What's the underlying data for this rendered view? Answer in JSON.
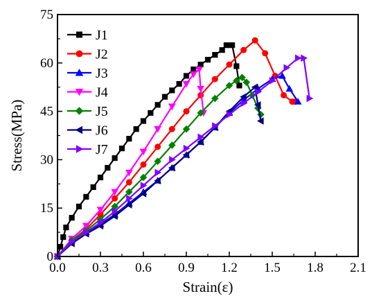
{
  "chart_data": {
    "type": "line",
    "xlabel": "Strain(ε)",
    "ylabel": "Stress(MPa)",
    "xlim": [
      0.0,
      2.1
    ],
    "ylim": [
      0,
      75
    ],
    "x_ticks": [
      "0.0",
      "0.3",
      "0.6",
      "0.9",
      "1.2",
      "1.5",
      "1.8",
      "2.1"
    ],
    "y_ticks": [
      "0",
      "15",
      "30",
      "45",
      "60",
      "75"
    ],
    "grid": false,
    "legend_position": "top-left",
    "series": [
      {
        "name": "J1",
        "color": "#000000",
        "marker": "square",
        "x": [
          0.0,
          0.02,
          0.04,
          0.06,
          0.1,
          0.15,
          0.2,
          0.25,
          0.3,
          0.35,
          0.4,
          0.45,
          0.5,
          0.55,
          0.6,
          0.65,
          0.7,
          0.75,
          0.8,
          0.85,
          0.9,
          0.95,
          1.0,
          1.05,
          1.1,
          1.15,
          1.18,
          1.22,
          1.25,
          1.27
        ],
        "y": [
          0,
          3,
          6,
          9,
          12,
          15.5,
          18.5,
          21.5,
          24.5,
          27.5,
          30.5,
          33.5,
          36.5,
          39.5,
          42,
          44.5,
          47,
          49.5,
          51.5,
          53.5,
          56,
          58,
          59.5,
          61,
          62.5,
          64,
          65.5,
          65.5,
          59,
          53
        ]
      },
      {
        "name": "J2",
        "color": "#ff0000",
        "marker": "circle",
        "x": [
          0.0,
          0.1,
          0.2,
          0.3,
          0.4,
          0.5,
          0.6,
          0.7,
          0.8,
          0.9,
          1.0,
          1.1,
          1.2,
          1.3,
          1.38,
          1.45,
          1.52,
          1.58,
          1.64,
          1.66
        ],
        "y": [
          0,
          5,
          8.5,
          13,
          18,
          23,
          28.5,
          34,
          39.5,
          45,
          50,
          55,
          59.5,
          64,
          67,
          63,
          56,
          50,
          48,
          48
        ]
      },
      {
        "name": "J3",
        "color": "#0000ff",
        "marker": "triangle-up",
        "x": [
          0.0,
          0.1,
          0.2,
          0.3,
          0.4,
          0.5,
          0.6,
          0.7,
          0.8,
          0.9,
          1.0,
          1.1,
          1.2,
          1.3,
          1.4,
          1.5,
          1.57,
          1.62,
          1.68
        ],
        "y": [
          0,
          5,
          7.5,
          10,
          13,
          16.5,
          20,
          23.5,
          27.5,
          31.5,
          35.5,
          40,
          44.5,
          48.5,
          52,
          55,
          56,
          52,
          48
        ]
      },
      {
        "name": "J4",
        "color": "#ff00ff",
        "marker": "triangle-down",
        "x": [
          0.0,
          0.1,
          0.2,
          0.3,
          0.4,
          0.5,
          0.6,
          0.7,
          0.8,
          0.9,
          0.95,
          0.99,
          1.0,
          1.02
        ],
        "y": [
          0,
          5.5,
          9.5,
          14.5,
          20,
          26,
          32.5,
          39.5,
          46.5,
          53.5,
          56.5,
          58,
          52,
          44.5
        ]
      },
      {
        "name": "J5",
        "color": "#008000",
        "marker": "diamond",
        "x": [
          0.0,
          0.1,
          0.2,
          0.3,
          0.4,
          0.5,
          0.6,
          0.7,
          0.8,
          0.9,
          1.0,
          1.1,
          1.2,
          1.25,
          1.29,
          1.32,
          1.36,
          1.4,
          1.42
        ],
        "y": [
          0,
          5,
          8,
          11.5,
          15.5,
          20,
          24.5,
          29.5,
          34.5,
          39.5,
          44.5,
          49,
          53,
          54.5,
          55.5,
          54,
          50,
          46,
          44
        ]
      },
      {
        "name": "J6",
        "color": "#000080",
        "marker": "triangle-left",
        "x": [
          0.0,
          0.1,
          0.2,
          0.3,
          0.4,
          0.5,
          0.6,
          0.7,
          0.8,
          0.9,
          1.0,
          1.1,
          1.2,
          1.3,
          1.38,
          1.4,
          1.42
        ],
        "y": [
          0,
          4,
          7,
          9.5,
          12.5,
          16,
          19.5,
          23.5,
          27.5,
          31.5,
          35.5,
          40,
          45,
          49.5,
          52.5,
          47,
          42
        ]
      },
      {
        "name": "J7",
        "color": "#8000ff",
        "marker": "triangle-right",
        "x": [
          0.0,
          0.1,
          0.2,
          0.3,
          0.4,
          0.5,
          0.6,
          0.7,
          0.8,
          0.9,
          1.0,
          1.1,
          1.2,
          1.3,
          1.4,
          1.5,
          1.6,
          1.68,
          1.72,
          1.76
        ],
        "y": [
          0,
          4.5,
          7.5,
          10.5,
          14,
          18,
          22,
          26,
          30,
          33.5,
          37,
          40.5,
          44,
          47.5,
          51,
          54.5,
          58.5,
          61.5,
          61.5,
          49
        ]
      }
    ]
  }
}
